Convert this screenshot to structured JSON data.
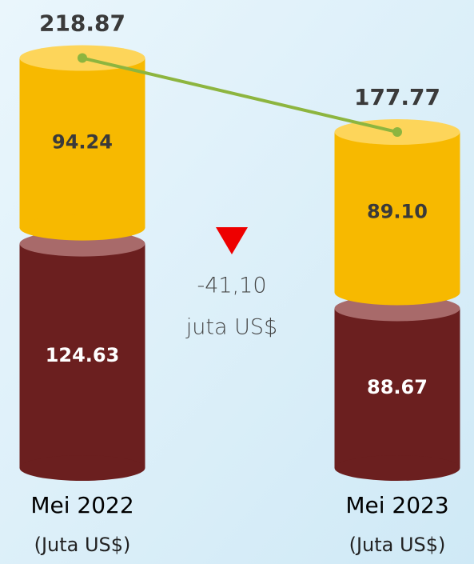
{
  "chart_data": {
    "type": "cylinder_stack",
    "categories": [
      "Mei 2022",
      "Mei 2023"
    ],
    "unit_label": "(Juta US$)",
    "series": [
      {
        "name": null,
        "color": "#6b1f1f",
        "top_color": "#a86a6a",
        "label_color": "#ffffff",
        "values": [
          124.63,
          88.67
        ]
      },
      {
        "name": null,
        "color": "#f7b900",
        "top_color": "#fdd55a",
        "label_color": "#3a3a3a",
        "values": [
          94.24,
          89.1
        ],
        "value_labels": [
          "94.24",
          "89.10"
        ]
      }
    ],
    "totals": [
      218.87,
      177.77
    ],
    "total_line_color": "#8db53f",
    "annotation": {
      "lines": [
        "-41,10",
        "juta US$"
      ],
      "marker_color": "#ee0000"
    }
  }
}
